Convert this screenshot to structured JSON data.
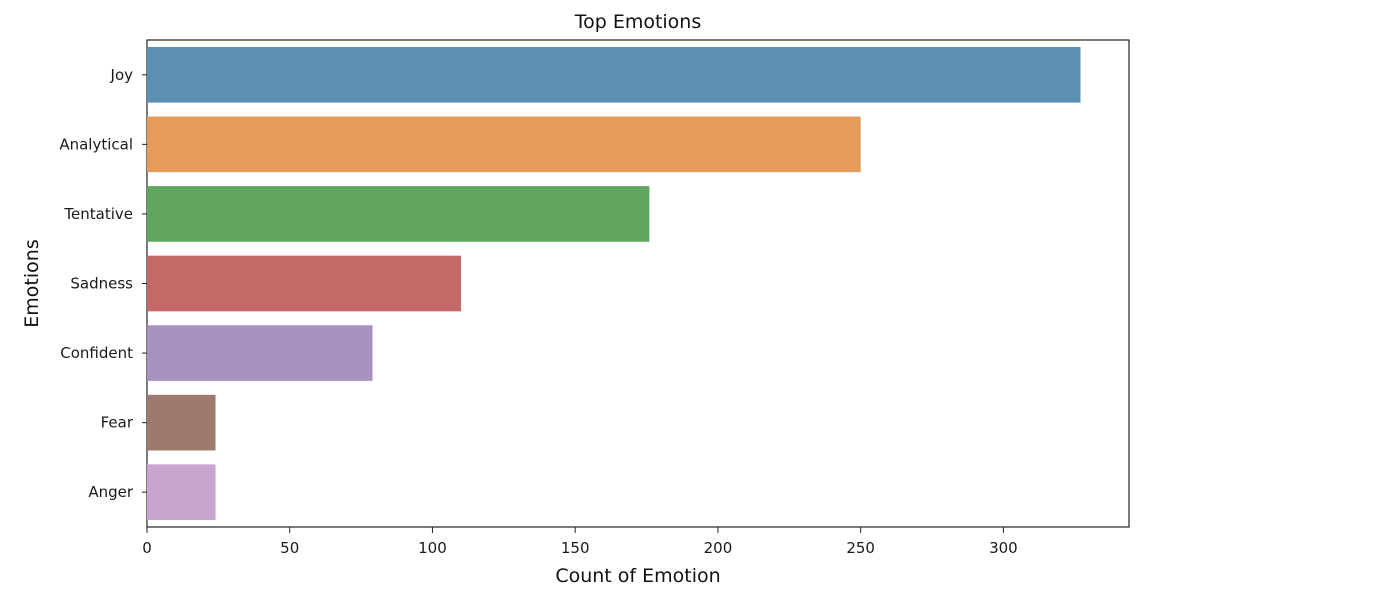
{
  "chart_data": {
    "type": "bar",
    "orientation": "horizontal",
    "title": "Top Emotions",
    "xlabel": "Count of Emotion",
    "ylabel": "Emotions",
    "categories": [
      "Joy",
      "Analytical",
      "Tentative",
      "Sadness",
      "Confident",
      "Fear",
      "Anger"
    ],
    "values": [
      327,
      250,
      176,
      110,
      79,
      24,
      24
    ],
    "colors": [
      "#5b8fb4",
      "#e59b5c",
      "#60a65f",
      "#c56868",
      "#a992c2",
      "#9c7a6e",
      "#c8a5cf"
    ],
    "xlim": [
      0,
      344
    ],
    "xticks": [
      0,
      50,
      100,
      150,
      200,
      250,
      300
    ],
    "grid": false,
    "legend": "none"
  }
}
